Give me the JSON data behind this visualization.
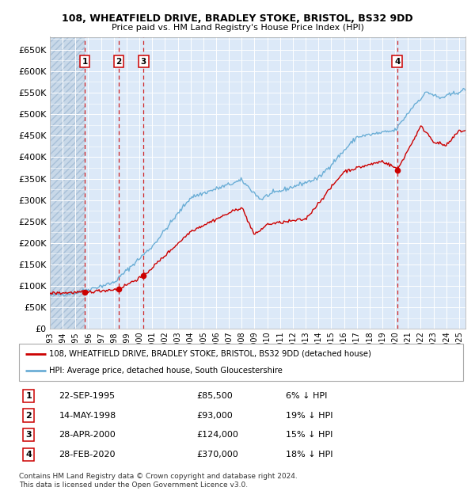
{
  "title1": "108, WHEATFIELD DRIVE, BRADLEY STOKE, BRISTOL, BS32 9DD",
  "title2": "Price paid vs. HM Land Registry's House Price Index (HPI)",
  "ylabel_ticks": [
    "£0",
    "£50K",
    "£100K",
    "£150K",
    "£200K",
    "£250K",
    "£300K",
    "£350K",
    "£400K",
    "£450K",
    "£500K",
    "£550K",
    "£600K",
    "£650K"
  ],
  "ytick_values": [
    0,
    50000,
    100000,
    150000,
    200000,
    250000,
    300000,
    350000,
    400000,
    450000,
    500000,
    550000,
    600000,
    650000
  ],
  "ylim": [
    0,
    680000
  ],
  "xlim_start": 1993.0,
  "xlim_end": 2025.5,
  "bg_color": "#dce9f8",
  "grid_color": "#ffffff",
  "sale_color": "#cc0000",
  "hpi_color": "#6baed6",
  "transactions": [
    {
      "label": "1",
      "date_num": 1995.73,
      "price": 85500,
      "hpi_pct": 6,
      "date_str": "22-SEP-1995",
      "price_str": "£85,500"
    },
    {
      "label": "2",
      "date_num": 1998.37,
      "price": 93000,
      "hpi_pct": 19,
      "date_str": "14-MAY-1998",
      "price_str": "£93,000"
    },
    {
      "label": "3",
      "date_num": 2000.33,
      "price": 124000,
      "hpi_pct": 15,
      "date_str": "28-APR-2000",
      "price_str": "£124,000"
    },
    {
      "label": "4",
      "date_num": 2020.16,
      "price": 370000,
      "hpi_pct": 18,
      "date_str": "28-FEB-2020",
      "price_str": "£370,000"
    }
  ],
  "legend_entries": [
    "108, WHEATFIELD DRIVE, BRADLEY STOKE, BRISTOL, BS32 9DD (detached house)",
    "HPI: Average price, detached house, South Gloucestershire"
  ],
  "footer_line1": "Contains HM Land Registry data © Crown copyright and database right 2024.",
  "footer_line2": "This data is licensed under the Open Government Licence v3.0."
}
